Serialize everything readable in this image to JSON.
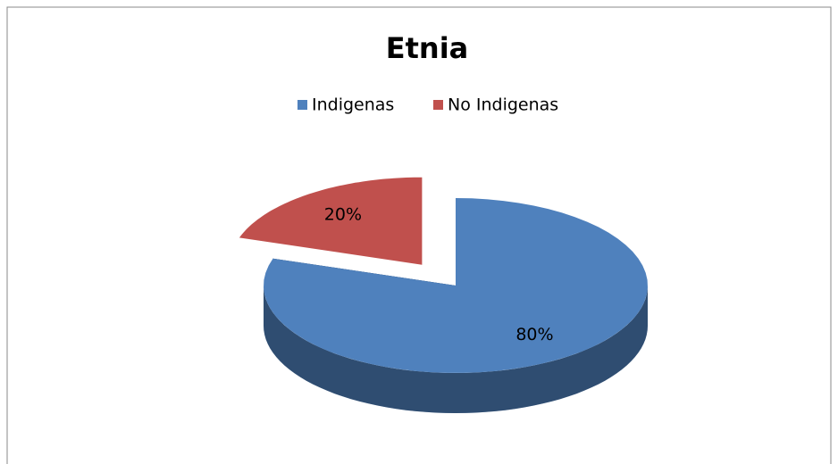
{
  "chart_data": {
    "type": "pie",
    "title": "Etnia",
    "categories": [
      "Indigenas",
      "No Indigenas"
    ],
    "values": [
      80,
      20
    ],
    "value_labels": [
      "80%",
      "20%"
    ],
    "colors": [
      "#4f81bd",
      "#c0504d"
    ],
    "legend": "top"
  }
}
